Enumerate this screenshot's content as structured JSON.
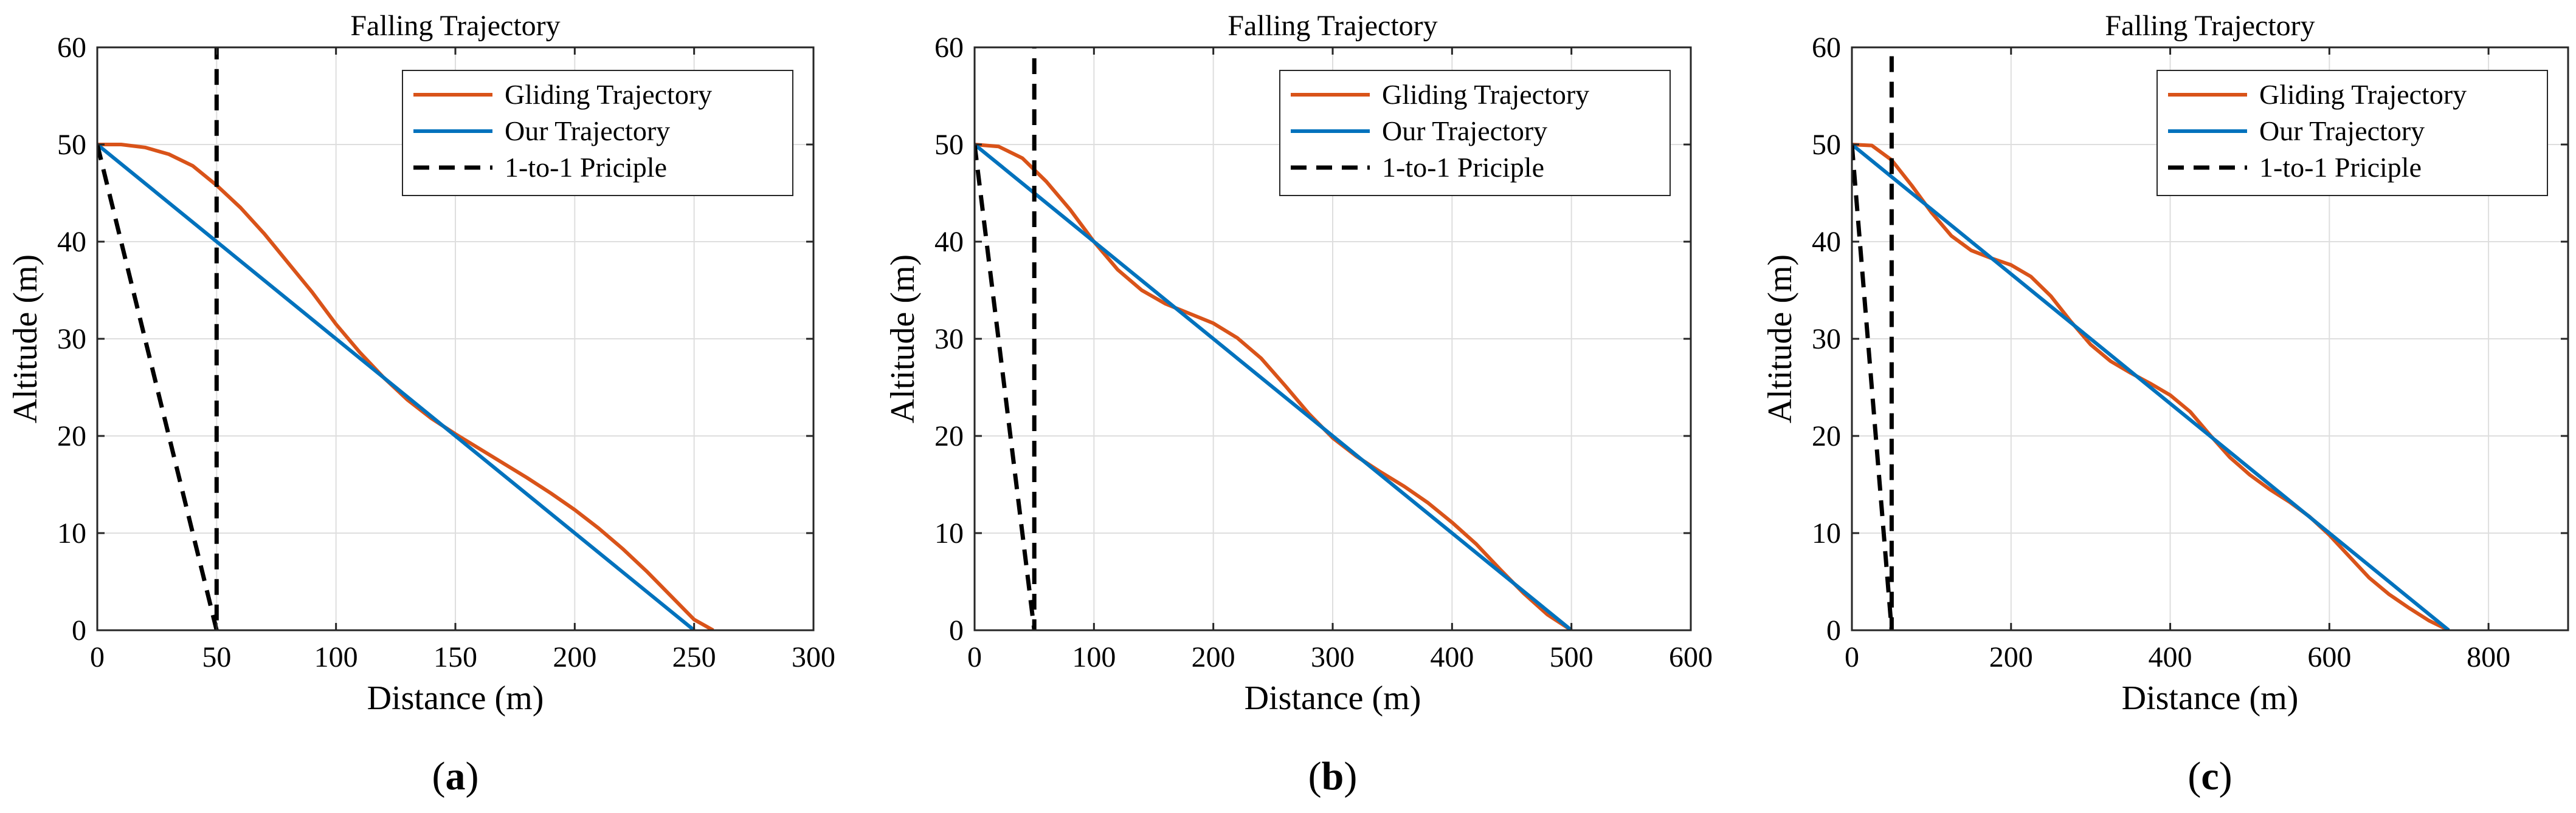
{
  "colors": {
    "gliding": "#D95319",
    "ours": "#0072BD",
    "principle": "#000000"
  },
  "chart_data": [
    {
      "type": "line",
      "sublabel": "(a)",
      "title": "Falling Trajectory",
      "xlabel": "Distance (m)",
      "ylabel": "Altitude (m)",
      "xlim": [
        0,
        300
      ],
      "ylim": [
        0,
        60
      ],
      "xticks": [
        0,
        50,
        100,
        150,
        200,
        250,
        300
      ],
      "yticks": [
        0,
        10,
        20,
        30,
        40,
        50,
        60
      ],
      "grid": true,
      "legend_position": "top-right",
      "series": [
        {
          "name": "Gliding Trajectory",
          "style": "solid",
          "color": "#D95319",
          "x": [
            0,
            10,
            20,
            30,
            40,
            50,
            60,
            70,
            80,
            90,
            100,
            110,
            120,
            130,
            140,
            150,
            160,
            170,
            180,
            190,
            200,
            210,
            220,
            230,
            240,
            250,
            258
          ],
          "y": [
            50,
            50,
            49.7,
            49,
            47.8,
            45.8,
            43.5,
            40.8,
            37.8,
            34.8,
            31.5,
            28.6,
            26,
            23.7,
            21.8,
            20.2,
            18.7,
            17.2,
            15.7,
            14.1,
            12.4,
            10.5,
            8.4,
            6.1,
            3.6,
            1.1,
            0
          ]
        },
        {
          "name": "Our Trajectory",
          "style": "solid",
          "color": "#0072BD",
          "x": [
            0,
            250
          ],
          "y": [
            50,
            0
          ]
        },
        {
          "name": "1-to-1 Priciple",
          "style": "dashed",
          "color": "#000000",
          "x": [
            0,
            50,
            50
          ],
          "y": [
            50,
            0,
            60
          ]
        }
      ]
    },
    {
      "type": "line",
      "sublabel": "(b)",
      "title": "Falling Trajectory",
      "xlabel": "Distance (m)",
      "ylabel": "Altitude (m)",
      "xlim": [
        0,
        600
      ],
      "ylim": [
        0,
        60
      ],
      "xticks": [
        0,
        100,
        200,
        300,
        400,
        500,
        600
      ],
      "yticks": [
        0,
        10,
        20,
        30,
        40,
        50,
        60
      ],
      "grid": true,
      "legend_position": "top-right",
      "series": [
        {
          "name": "Gliding Trajectory",
          "style": "solid",
          "color": "#D95319",
          "x": [
            0,
            20,
            40,
            60,
            80,
            100,
            120,
            140,
            160,
            180,
            200,
            220,
            240,
            260,
            280,
            300,
            320,
            340,
            360,
            380,
            400,
            420,
            440,
            460,
            480,
            500
          ],
          "y": [
            50,
            49.8,
            48.6,
            46.2,
            43.3,
            40,
            37.1,
            35,
            33.6,
            32.6,
            31.6,
            30.1,
            28,
            25.2,
            22.3,
            19.8,
            17.9,
            16.3,
            14.8,
            13.1,
            11.1,
            8.9,
            6.3,
            3.8,
            1.6,
            0
          ]
        },
        {
          "name": "Our Trajectory",
          "style": "solid",
          "color": "#0072BD",
          "x": [
            0,
            500
          ],
          "y": [
            50,
            0
          ]
        },
        {
          "name": "1-to-1 Priciple",
          "style": "dashed",
          "color": "#000000",
          "x": [
            0,
            50,
            50
          ],
          "y": [
            50,
            0,
            60
          ]
        }
      ]
    },
    {
      "type": "line",
      "sublabel": "(c)",
      "title": "Falling Trajectory",
      "xlabel": "Distance (m)",
      "ylabel": "Altitude (m)",
      "xlim": [
        0,
        900
      ],
      "ylim": [
        0,
        60
      ],
      "xticks": [
        0,
        200,
        400,
        600,
        800
      ],
      "yticks": [
        0,
        10,
        20,
        30,
        40,
        50,
        60
      ],
      "grid": true,
      "legend_position": "top-right",
      "series": [
        {
          "name": "Gliding Trajectory",
          "style": "solid",
          "color": "#D95319",
          "x": [
            0,
            25,
            50,
            75,
            100,
            125,
            150,
            175,
            200,
            225,
            250,
            275,
            300,
            325,
            350,
            375,
            400,
            425,
            450,
            475,
            500,
            525,
            550,
            575,
            600,
            625,
            650,
            675,
            700,
            725,
            750
          ],
          "y": [
            50,
            49.9,
            48.4,
            45.8,
            43,
            40.6,
            39.1,
            38.3,
            37.6,
            36.4,
            34.4,
            31.8,
            29.4,
            27.7,
            26.5,
            25.4,
            24.2,
            22.5,
            20.1,
            17.8,
            16,
            14.5,
            13.2,
            11.7,
            9.8,
            7.6,
            5.4,
            3.7,
            2.3,
            1,
            0
          ]
        },
        {
          "name": "Our Trajectory",
          "style": "solid",
          "color": "#0072BD",
          "x": [
            0,
            750
          ],
          "y": [
            50,
            0
          ]
        },
        {
          "name": "1-to-1 Priciple",
          "style": "dashed",
          "color": "#000000",
          "x": [
            0,
            50,
            50
          ],
          "y": [
            50,
            0,
            60
          ]
        }
      ]
    }
  ]
}
